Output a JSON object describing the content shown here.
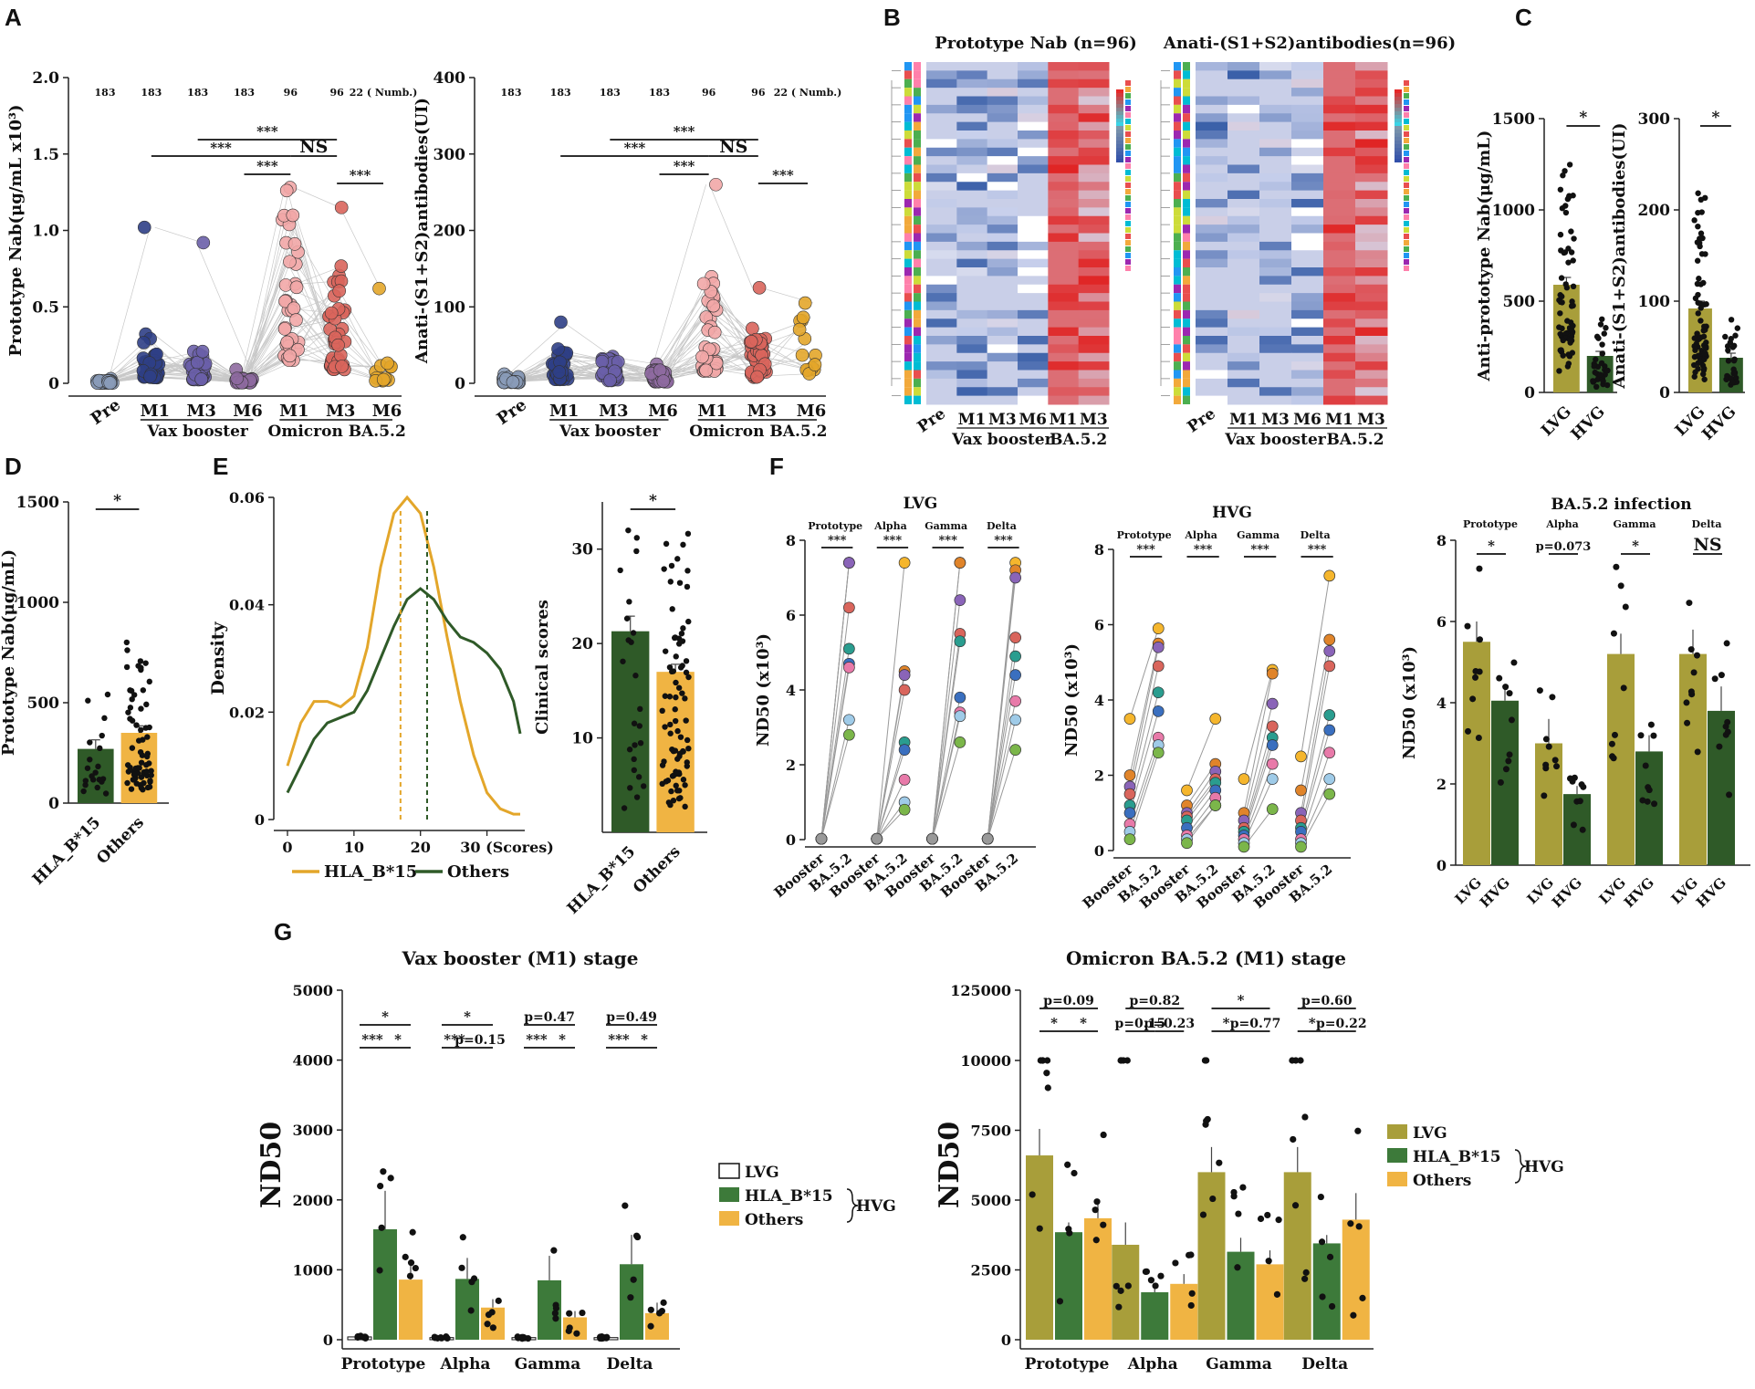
{
  "panel_letters": [
    "A",
    "B",
    "C",
    "D",
    "E",
    "F",
    "G"
  ],
  "colors": {
    "pre": "#8a9bb8",
    "vax": "#2f3f86",
    "vax_m3": "#6a5fa8",
    "vax_m6": "#8e6aa0",
    "om_m1": "#f2a7a7",
    "om_m3": "#d9655c",
    "om_m6": "#e3a62a",
    "lvg": "#a89e3a",
    "hvg": "#2f5a28",
    "hla": "#3d7a3a",
    "others": "#f0b443",
    "gold": "#d4a62a",
    "heat_hi": "#e02424",
    "heat_lo": "#3a5fa8",
    "heat_mid": "#d6dcef"
  },
  "chart_data": [
    {
      "id": "A1",
      "type": "scatter",
      "title": "",
      "ylabel": "Prototype Nab(μg/mL x10³)",
      "ylim": [
        0,
        2.0
      ],
      "yticks": [
        "0",
        "0.5",
        "1.0",
        "1.5",
        "2.0"
      ],
      "categories": [
        "Pre",
        "M1",
        "M3",
        "M6",
        "M1",
        "M3",
        "M6"
      ],
      "counts": [
        "183",
        "183",
        "183",
        "183",
        "96",
        "96",
        "22 ( Numb.)"
      ],
      "groups": [
        "Vax booster",
        "Omicron BA.5.2"
      ],
      "medians": [
        0.01,
        0.18,
        0.12,
        0.02,
        0.75,
        0.45,
        0.08
      ],
      "maxima": [
        0.03,
        1.02,
        0.92,
        0.09,
        1.28,
        1.15,
        0.62
      ],
      "sig": [
        {
          "from": 1,
          "to": 4,
          "label": "***"
        },
        {
          "from": 2,
          "to": 5,
          "label": "***"
        },
        {
          "from": 3,
          "to": 4,
          "label": "***"
        },
        {
          "from": 4,
          "to": 5,
          "label": "NS"
        },
        {
          "from": 5,
          "to": 6,
          "label": "***"
        }
      ]
    },
    {
      "id": "A2",
      "type": "scatter",
      "ylabel": "Anati-(S1+S2)antibodies(UI)",
      "ylim": [
        0,
        400
      ],
      "yticks": [
        "0",
        "100",
        "200",
        "300",
        "400"
      ],
      "categories": [
        "Pre",
        "M1",
        "M3",
        "M6",
        "M1",
        "M3",
        "M6"
      ],
      "counts": [
        "183",
        "183",
        "183",
        "183",
        "96",
        "96",
        "22 ( Numb.)"
      ],
      "groups": [
        "Vax booster",
        "Omicron BA.5.2"
      ],
      "medians": [
        5,
        25,
        18,
        10,
        80,
        40,
        60
      ],
      "maxima": [
        12,
        80,
        35,
        25,
        260,
        125,
        105
      ],
      "sig": [
        {
          "from": 1,
          "to": 4,
          "label": "***"
        },
        {
          "from": 2,
          "to": 5,
          "label": "***"
        },
        {
          "from": 3,
          "to": 4,
          "label": "***"
        },
        {
          "from": 4,
          "to": 5,
          "label": "NS"
        },
        {
          "from": 5,
          "to": 6,
          "label": "***"
        }
      ]
    },
    {
      "id": "B1",
      "type": "heatmap",
      "title": "Prototype Nab (n=96)",
      "columns": [
        "Pre",
        "M1",
        "M3",
        "M6",
        "M1",
        "M3"
      ],
      "groups": [
        "Vax booster",
        "BA.5.2"
      ],
      "rows": 40
    },
    {
      "id": "B2",
      "type": "heatmap",
      "title": "Anati-(S1+S2)antibodies(n=96)",
      "columns": [
        "Pre",
        "M1",
        "M3",
        "M6",
        "M1",
        "M3"
      ],
      "groups": [
        "Vax booster",
        "BA.5.2"
      ],
      "rows": 40
    },
    {
      "id": "C1",
      "type": "bar",
      "ylabel": "Anti-prototype Nab(μg/mL)",
      "categories": [
        "LVG",
        "HVG"
      ],
      "values": [
        590,
        200
      ],
      "errors": [
        40,
        25
      ],
      "ylim": [
        0,
        1500
      ],
      "yticks": [
        "0",
        "500",
        "1000",
        "1500"
      ],
      "sig": "*"
    },
    {
      "id": "C2",
      "type": "bar",
      "ylabel": "Anati-(S1+S2)antibodies(UI)",
      "categories": [
        "LVG",
        "HVG"
      ],
      "values": [
        92,
        38
      ],
      "errors": [
        8,
        5
      ],
      "ylim": [
        0,
        300
      ],
      "yticks": [
        "0",
        "100",
        "200",
        "300"
      ],
      "sig": "*"
    },
    {
      "id": "D",
      "type": "bar",
      "ylabel": "Prototype Nab(μg/mL)",
      "categories": [
        "HLA_B*15",
        "Others"
      ],
      "values": [
        270,
        350
      ],
      "errors": [
        45,
        35
      ],
      "ylim": [
        0,
        1500
      ],
      "yticks": [
        "0",
        "500",
        "1000",
        "1500"
      ],
      "sig": "*"
    },
    {
      "id": "E1",
      "type": "line",
      "ylabel": "Density",
      "xlabel": "",
      "xticks": [
        "0",
        "10",
        "20",
        "30 (Scores)"
      ],
      "yticks": [
        "0",
        "0.02",
        "0.04",
        "0.06"
      ],
      "xlim": [
        0,
        35
      ],
      "ylim": [
        0,
        0.06
      ],
      "series": [
        {
          "name": "HLA_B*15",
          "x": [
            0,
            2,
            4,
            6,
            8,
            10,
            12,
            14,
            16,
            18,
            20,
            22,
            24,
            26,
            28,
            30,
            32,
            34,
            35
          ],
          "values": [
            0.01,
            0.018,
            0.022,
            0.022,
            0.021,
            0.023,
            0.032,
            0.047,
            0.057,
            0.06,
            0.057,
            0.047,
            0.034,
            0.022,
            0.012,
            0.005,
            0.002,
            0.001,
            0.001
          ]
        },
        {
          "name": "Others",
          "x": [
            0,
            2,
            4,
            6,
            8,
            10,
            12,
            14,
            16,
            18,
            20,
            22,
            24,
            26,
            28,
            30,
            32,
            34,
            35
          ],
          "values": [
            0.005,
            0.01,
            0.015,
            0.018,
            0.019,
            0.02,
            0.024,
            0.03,
            0.036,
            0.041,
            0.043,
            0.041,
            0.037,
            0.034,
            0.033,
            0.031,
            0.028,
            0.022,
            0.016
          ]
        }
      ],
      "vlines": [
        {
          "x": 17,
          "series": "HLA_B*15"
        },
        {
          "x": 21,
          "series": "Others"
        }
      ],
      "legend": [
        "HLA_B*15",
        "Others"
      ]
    },
    {
      "id": "E2",
      "type": "bar",
      "ylabel": "Clinical scores",
      "categories": [
        "HLA_B*15",
        "Others"
      ],
      "values": [
        21.3,
        17.0
      ],
      "errors": [
        1.6,
        0.8
      ],
      "ylim": [
        0,
        35
      ],
      "yticks": [
        "10",
        "20",
        "30"
      ],
      "sig": "*"
    },
    {
      "id": "F1",
      "type": "scatter",
      "title": "LVG",
      "ylabel": "ND50 (x10³)",
      "ylim": [
        0,
        8
      ],
      "yticks": [
        "0",
        "2",
        "4",
        "6",
        "8"
      ],
      "variants": [
        "Prototype",
        "Alpha",
        "Gamma",
        "Delta"
      ],
      "conditions": [
        "Booster",
        "BA.5.2"
      ],
      "booster": [
        0.02,
        0.02,
        0.02,
        0.02
      ],
      "ba52": [
        [
          7.4,
          7.4,
          7.4,
          6.2,
          5.1,
          4.7,
          4.6,
          3.2,
          2.8
        ],
        [
          7.4,
          4.5,
          4.4,
          4.0,
          2.6,
          2.4,
          1.6,
          1.0,
          0.8
        ],
        [
          7.4,
          7.4,
          6.4,
          5.5,
          5.3,
          3.8,
          3.4,
          3.3,
          2.6
        ],
        [
          7.4,
          7.2,
          7.0,
          5.4,
          4.9,
          4.4,
          3.7,
          3.2,
          2.4
        ]
      ],
      "sig": [
        "***",
        "***",
        "***",
        "***"
      ]
    },
    {
      "id": "F2",
      "type": "scatter",
      "title": "HVG",
      "ylabel": "ND50 (x10³)",
      "ylim": [
        0,
        8
      ],
      "yticks": [
        "0",
        "2",
        "4",
        "6",
        "8"
      ],
      "variants": [
        "Prototype",
        "Alpha",
        "Gamma",
        "Delta"
      ],
      "conditions": [
        "Booster",
        "BA.5.2"
      ],
      "booster": [
        [
          3.5,
          2.0,
          1.7,
          1.5,
          1.2,
          1.0,
          0.7,
          0.5,
          0.3
        ],
        [
          1.6,
          1.2,
          1.0,
          0.9,
          0.8,
          0.6,
          0.4,
          0.3,
          0.2
        ],
        [
          1.9,
          1.0,
          0.8,
          0.6,
          0.5,
          0.4,
          0.3,
          0.2,
          0.1
        ],
        [
          2.5,
          1.6,
          1.0,
          0.8,
          0.6,
          0.5,
          0.3,
          0.2,
          0.1
        ]
      ],
      "ba52": [
        [
          5.9,
          5.5,
          5.4,
          4.9,
          4.2,
          3.7,
          3.0,
          2.8,
          2.6
        ],
        [
          3.5,
          2.3,
          2.1,
          1.9,
          1.8,
          1.6,
          1.4,
          1.2,
          1.2
        ],
        [
          4.8,
          4.7,
          3.9,
          3.3,
          3.0,
          2.8,
          2.3,
          1.9,
          1.1
        ],
        [
          7.3,
          5.6,
          5.3,
          4.9,
          3.6,
          3.2,
          2.6,
          1.9,
          1.5
        ]
      ],
      "sig": [
        "***",
        "***",
        "***",
        "***"
      ]
    },
    {
      "id": "F3",
      "type": "bar",
      "title": "BA.5.2 infection",
      "ylabel": "ND50 (x10³)",
      "ylim": [
        0,
        8
      ],
      "yticks": [
        "0",
        "2",
        "4",
        "6",
        "8"
      ],
      "variants": [
        "Prototype",
        "Alpha",
        "Gamma",
        "Delta"
      ],
      "categories": [
        "LVG",
        "HVG",
        "LVG",
        "HVG",
        "LVG",
        "HVG",
        "LVG",
        "HVG"
      ],
      "values": [
        5.5,
        4.05,
        3.0,
        1.75,
        5.2,
        2.8,
        5.2,
        3.8
      ],
      "errors": [
        0.5,
        0.4,
        0.6,
        0.2,
        0.5,
        0.4,
        0.6,
        0.6
      ],
      "sig": [
        "*",
        "p=0.073",
        "*",
        "NS"
      ]
    },
    {
      "id": "G1",
      "type": "bar",
      "title": "Vax booster (M1) stage",
      "ylabel": "ND50",
      "ylim": [
        0,
        5000
      ],
      "yticks": [
        "0",
        "1000",
        "2000",
        "3000",
        "4000",
        "5000"
      ],
      "categories": [
        "Prototype",
        "Alpha",
        "Gamma",
        "Delta"
      ],
      "series": [
        {
          "name": "LVG",
          "values": [
            40,
            30,
            30,
            30
          ],
          "errors": [
            8,
            6,
            6,
            6
          ]
        },
        {
          "name": "HLA_B*15",
          "values": [
            1580,
            870,
            850,
            1080
          ],
          "errors": [
            550,
            300,
            350,
            420
          ]
        },
        {
          "name": "Others",
          "values": [
            860,
            460,
            320,
            380
          ],
          "errors": [
            230,
            120,
            90,
            150
          ]
        }
      ],
      "sig": [
        [
          "*",
          "***",
          "*"
        ],
        [
          "*",
          "***",
          "p=0.15"
        ],
        [
          "p=0.47",
          "***",
          "*"
        ],
        [
          "p=0.49",
          "***",
          "*"
        ]
      ],
      "legend": [
        "LVG",
        "HLA_B*15",
        "Others"
      ],
      "legend_group": "HVG"
    },
    {
      "id": "G2",
      "type": "bar",
      "title": "Omicron BA.5.2 (M1) stage",
      "ylabel": "ND50",
      "ylim": [
        0,
        125000
      ],
      "yticks": [
        "0",
        "2500",
        "5000",
        "7500",
        "10000",
        "125000"
      ],
      "categories": [
        "Prototype",
        "Alpha",
        "Gamma",
        "Delta"
      ],
      "series": [
        {
          "name": "LVG",
          "values": [
            6600,
            3400,
            6000,
            6000
          ],
          "errors": [
            950,
            800,
            900,
            900
          ]
        },
        {
          "name": "HLA_B*15",
          "values": [
            3850,
            1700,
            3150,
            3450
          ],
          "errors": [
            350,
            250,
            500,
            300
          ]
        },
        {
          "name": "Others",
          "values": [
            4350,
            2000,
            2700,
            4300
          ],
          "errors": [
            500,
            350,
            500,
            950
          ]
        }
      ],
      "sig": [
        [
          "p=0.09",
          "*",
          "*"
        ],
        [
          "p=0.82",
          "p=0.15",
          "p=0.23"
        ],
        [
          "*",
          "*",
          "p=0.77"
        ],
        [
          "p=0.60",
          "*",
          "p=0.22"
        ]
      ],
      "legend": [
        "LVG",
        "HLA_B*15",
        "Others"
      ],
      "legend_group": "HVG"
    }
  ]
}
